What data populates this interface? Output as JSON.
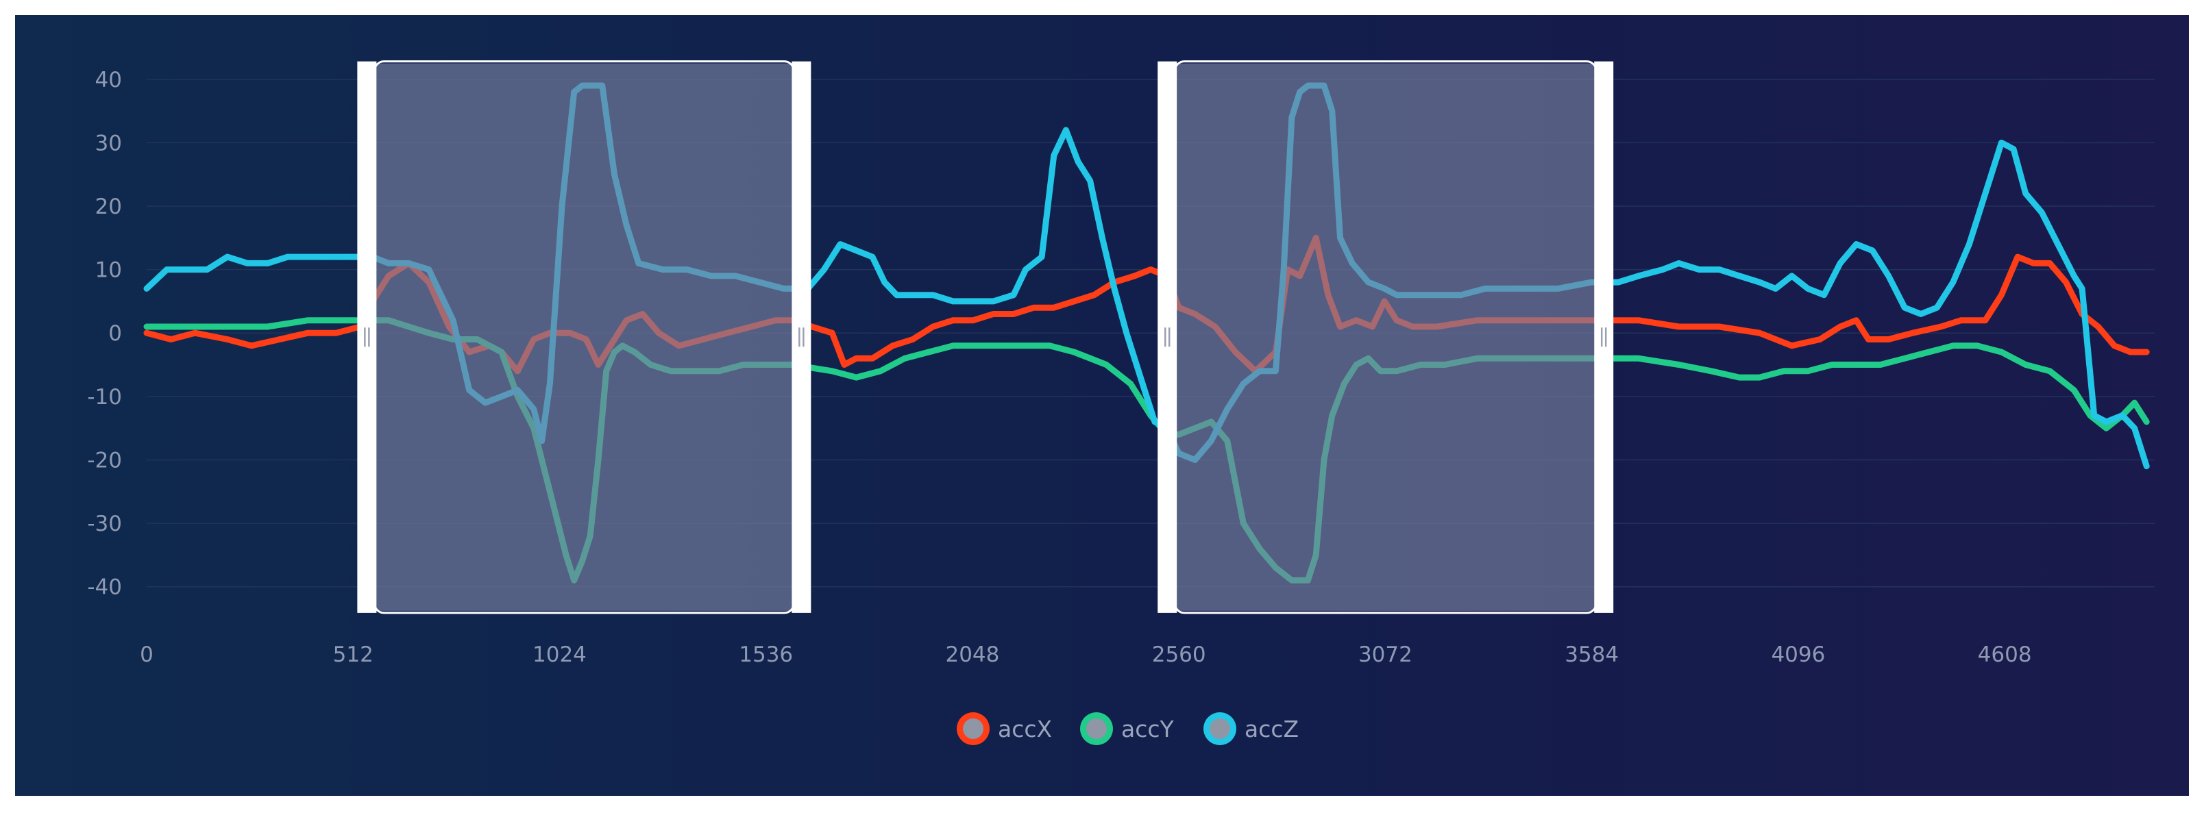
{
  "chart_data": {
    "type": "line",
    "xlim": [
      0,
      4980
    ],
    "ylim": [
      -45,
      43
    ],
    "x_ticks": [
      0,
      512,
      1024,
      1536,
      2048,
      2560,
      3072,
      3584,
      4096,
      4608
    ],
    "y_ticks": [
      40,
      30,
      20,
      10,
      0,
      -10,
      -20,
      -30,
      -40
    ],
    "x_tick_labels": [
      "0",
      "512",
      "1024",
      "1536",
      "2048",
      "2560",
      "3072",
      "3584",
      "4096",
      "4608"
    ],
    "y_tick_labels": [
      "40",
      "30",
      "20",
      "10",
      "0",
      "-10",
      "-20",
      "-30",
      "-40"
    ],
    "grid": true,
    "legend_position": "bottom-center",
    "selection_windows": [
      {
        "start": 570,
        "end": 1600
      },
      {
        "start": 2555,
        "end": 3590
      }
    ],
    "series": [
      {
        "name": "accX",
        "color": "#ff3d17",
        "points": [
          [
            0,
            0
          ],
          [
            60,
            -1
          ],
          [
            120,
            0
          ],
          [
            200,
            -1
          ],
          [
            260,
            -2
          ],
          [
            330,
            -1
          ],
          [
            400,
            0
          ],
          [
            470,
            0
          ],
          [
            530,
            1
          ],
          [
            560,
            5
          ],
          [
            600,
            9
          ],
          [
            650,
            11
          ],
          [
            700,
            8
          ],
          [
            750,
            1
          ],
          [
            800,
            -3
          ],
          [
            850,
            -2
          ],
          [
            880,
            -3
          ],
          [
            920,
            -6
          ],
          [
            960,
            -1
          ],
          [
            1000,
            0
          ],
          [
            1050,
            0
          ],
          [
            1090,
            -1
          ],
          [
            1120,
            -5
          ],
          [
            1150,
            -2
          ],
          [
            1190,
            2
          ],
          [
            1230,
            3
          ],
          [
            1270,
            0
          ],
          [
            1320,
            -2
          ],
          [
            1380,
            -1
          ],
          [
            1440,
            0
          ],
          [
            1500,
            1
          ],
          [
            1560,
            2
          ],
          [
            1600,
            2
          ],
          [
            1650,
            1
          ],
          [
            1700,
            0
          ],
          [
            1730,
            -5
          ],
          [
            1760,
            -4
          ],
          [
            1800,
            -4
          ],
          [
            1850,
            -2
          ],
          [
            1900,
            -1
          ],
          [
            1950,
            1
          ],
          [
            2000,
            2
          ],
          [
            2050,
            2
          ],
          [
            2100,
            3
          ],
          [
            2150,
            3
          ],
          [
            2200,
            4
          ],
          [
            2250,
            4
          ],
          [
            2300,
            5
          ],
          [
            2350,
            6
          ],
          [
            2400,
            8
          ],
          [
            2450,
            9
          ],
          [
            2490,
            10
          ],
          [
            2530,
            9
          ],
          [
            2560,
            4
          ],
          [
            2600,
            3
          ],
          [
            2650,
            1
          ],
          [
            2700,
            -3
          ],
          [
            2750,
            -6
          ],
          [
            2800,
            -3
          ],
          [
            2830,
            10
          ],
          [
            2860,
            9
          ],
          [
            2880,
            12
          ],
          [
            2900,
            15
          ],
          [
            2930,
            6
          ],
          [
            2960,
            1
          ],
          [
            3000,
            2
          ],
          [
            3040,
            1
          ],
          [
            3070,
            5
          ],
          [
            3100,
            2
          ],
          [
            3140,
            1
          ],
          [
            3200,
            1
          ],
          [
            3300,
            2
          ],
          [
            3400,
            2
          ],
          [
            3500,
            2
          ],
          [
            3584,
            2
          ],
          [
            3700,
            2
          ],
          [
            3800,
            1
          ],
          [
            3900,
            1
          ],
          [
            4000,
            0
          ],
          [
            4080,
            -2
          ],
          [
            4150,
            -1
          ],
          [
            4200,
            1
          ],
          [
            4240,
            2
          ],
          [
            4270,
            -1
          ],
          [
            4320,
            -1
          ],
          [
            4380,
            0
          ],
          [
            4450,
            1
          ],
          [
            4500,
            2
          ],
          [
            4560,
            2
          ],
          [
            4600,
            6
          ],
          [
            4640,
            12
          ],
          [
            4680,
            11
          ],
          [
            4720,
            11
          ],
          [
            4760,
            8
          ],
          [
            4800,
            3
          ],
          [
            4840,
            1
          ],
          [
            4880,
            -2
          ],
          [
            4920,
            -3
          ],
          [
            4960,
            -3
          ]
        ]
      },
      {
        "name": "accY",
        "color": "#21cb8a",
        "points": [
          [
            0,
            1
          ],
          [
            100,
            1
          ],
          [
            200,
            1
          ],
          [
            300,
            1
          ],
          [
            400,
            2
          ],
          [
            500,
            2
          ],
          [
            560,
            2
          ],
          [
            600,
            2
          ],
          [
            650,
            1
          ],
          [
            700,
            0
          ],
          [
            760,
            -1
          ],
          [
            820,
            -1
          ],
          [
            880,
            -3
          ],
          [
            920,
            -10
          ],
          [
            960,
            -15
          ],
          [
            1000,
            -25
          ],
          [
            1040,
            -35
          ],
          [
            1060,
            -39
          ],
          [
            1080,
            -36
          ],
          [
            1100,
            -32
          ],
          [
            1120,
            -20
          ],
          [
            1140,
            -6
          ],
          [
            1160,
            -3
          ],
          [
            1180,
            -2
          ],
          [
            1210,
            -3
          ],
          [
            1250,
            -5
          ],
          [
            1300,
            -6
          ],
          [
            1360,
            -6
          ],
          [
            1420,
            -6
          ],
          [
            1480,
            -5
          ],
          [
            1540,
            -5
          ],
          [
            1600,
            -5
          ],
          [
            1700,
            -6
          ],
          [
            1760,
            -7
          ],
          [
            1820,
            -6
          ],
          [
            1880,
            -4
          ],
          [
            1940,
            -3
          ],
          [
            2000,
            -2
          ],
          [
            2060,
            -2
          ],
          [
            2120,
            -2
          ],
          [
            2180,
            -2
          ],
          [
            2240,
            -2
          ],
          [
            2300,
            -3
          ],
          [
            2380,
            -5
          ],
          [
            2440,
            -8
          ],
          [
            2490,
            -13
          ],
          [
            2530,
            -16
          ],
          [
            2560,
            -16
          ],
          [
            2600,
            -15
          ],
          [
            2640,
            -14
          ],
          [
            2680,
            -17
          ],
          [
            2720,
            -30
          ],
          [
            2760,
            -34
          ],
          [
            2800,
            -37
          ],
          [
            2840,
            -39
          ],
          [
            2880,
            -39
          ],
          [
            2900,
            -35
          ],
          [
            2920,
            -20
          ],
          [
            2940,
            -13
          ],
          [
            2970,
            -8
          ],
          [
            3000,
            -5
          ],
          [
            3030,
            -4
          ],
          [
            3060,
            -6
          ],
          [
            3100,
            -6
          ],
          [
            3160,
            -5
          ],
          [
            3220,
            -5
          ],
          [
            3300,
            -4
          ],
          [
            3380,
            -4
          ],
          [
            3440,
            -4
          ],
          [
            3520,
            -4
          ],
          [
            3584,
            -4
          ],
          [
            3700,
            -4
          ],
          [
            3800,
            -5
          ],
          [
            3880,
            -6
          ],
          [
            3950,
            -7
          ],
          [
            4000,
            -7
          ],
          [
            4060,
            -6
          ],
          [
            4120,
            -6
          ],
          [
            4180,
            -5
          ],
          [
            4240,
            -5
          ],
          [
            4300,
            -5
          ],
          [
            4360,
            -4
          ],
          [
            4420,
            -3
          ],
          [
            4480,
            -2
          ],
          [
            4540,
            -2
          ],
          [
            4600,
            -3
          ],
          [
            4660,
            -5
          ],
          [
            4720,
            -6
          ],
          [
            4780,
            -9
          ],
          [
            4820,
            -13
          ],
          [
            4860,
            -15
          ],
          [
            4900,
            -13
          ],
          [
            4930,
            -11
          ],
          [
            4960,
            -14
          ]
        ]
      },
      {
        "name": "accZ",
        "color": "#22c6e6",
        "points": [
          [
            0,
            7
          ],
          [
            50,
            10
          ],
          [
            100,
            10
          ],
          [
            150,
            10
          ],
          [
            200,
            12
          ],
          [
            250,
            11
          ],
          [
            300,
            11
          ],
          [
            350,
            12
          ],
          [
            400,
            12
          ],
          [
            450,
            12
          ],
          [
            500,
            12
          ],
          [
            560,
            12
          ],
          [
            600,
            11
          ],
          [
            650,
            11
          ],
          [
            700,
            10
          ],
          [
            760,
            2
          ],
          [
            800,
            -9
          ],
          [
            840,
            -11
          ],
          [
            880,
            -10
          ],
          [
            920,
            -9
          ],
          [
            960,
            -12
          ],
          [
            980,
            -17
          ],
          [
            1000,
            -8
          ],
          [
            1030,
            20
          ],
          [
            1060,
            38
          ],
          [
            1080,
            39
          ],
          [
            1100,
            39
          ],
          [
            1130,
            39
          ],
          [
            1160,
            25
          ],
          [
            1190,
            17
          ],
          [
            1220,
            11
          ],
          [
            1280,
            10
          ],
          [
            1340,
            10
          ],
          [
            1400,
            9
          ],
          [
            1460,
            9
          ],
          [
            1520,
            8
          ],
          [
            1580,
            7
          ],
          [
            1640,
            7
          ],
          [
            1680,
            10
          ],
          [
            1720,
            14
          ],
          [
            1760,
            13
          ],
          [
            1800,
            12
          ],
          [
            1830,
            8
          ],
          [
            1860,
            6
          ],
          [
            1900,
            6
          ],
          [
            1950,
            6
          ],
          [
            2000,
            5
          ],
          [
            2050,
            5
          ],
          [
            2100,
            5
          ],
          [
            2150,
            6
          ],
          [
            2180,
            10
          ],
          [
            2220,
            12
          ],
          [
            2250,
            28
          ],
          [
            2280,
            32
          ],
          [
            2310,
            27
          ],
          [
            2340,
            24
          ],
          [
            2370,
            15
          ],
          [
            2400,
            7
          ],
          [
            2430,
            0
          ],
          [
            2470,
            -8
          ],
          [
            2500,
            -14
          ],
          [
            2530,
            -15
          ],
          [
            2560,
            -19
          ],
          [
            2600,
            -20
          ],
          [
            2640,
            -17
          ],
          [
            2680,
            -12
          ],
          [
            2720,
            -8
          ],
          [
            2760,
            -6
          ],
          [
            2800,
            -6
          ],
          [
            2820,
            10
          ],
          [
            2840,
            34
          ],
          [
            2860,
            38
          ],
          [
            2880,
            39
          ],
          [
            2920,
            39
          ],
          [
            2940,
            35
          ],
          [
            2960,
            15
          ],
          [
            2990,
            11
          ],
          [
            3030,
            8
          ],
          [
            3070,
            7
          ],
          [
            3100,
            6
          ],
          [
            3150,
            6
          ],
          [
            3200,
            6
          ],
          [
            3260,
            6
          ],
          [
            3320,
            7
          ],
          [
            3380,
            7
          ],
          [
            3440,
            7
          ],
          [
            3500,
            7
          ],
          [
            3584,
            8
          ],
          [
            3650,
            8
          ],
          [
            3700,
            9
          ],
          [
            3760,
            10
          ],
          [
            3800,
            11
          ],
          [
            3850,
            10
          ],
          [
            3900,
            10
          ],
          [
            3950,
            9
          ],
          [
            4000,
            8
          ],
          [
            4040,
            7
          ],
          [
            4080,
            9
          ],
          [
            4120,
            7
          ],
          [
            4160,
            6
          ],
          [
            4200,
            11
          ],
          [
            4240,
            14
          ],
          [
            4280,
            13
          ],
          [
            4320,
            9
          ],
          [
            4360,
            4
          ],
          [
            4400,
            3
          ],
          [
            4440,
            4
          ],
          [
            4480,
            8
          ],
          [
            4520,
            14
          ],
          [
            4560,
            22
          ],
          [
            4600,
            30
          ],
          [
            4630,
            29
          ],
          [
            4660,
            22
          ],
          [
            4700,
            19
          ],
          [
            4740,
            14
          ],
          [
            4780,
            9
          ],
          [
            4800,
            7
          ],
          [
            4830,
            -13
          ],
          [
            4860,
            -14
          ],
          [
            4900,
            -13
          ],
          [
            4930,
            -15
          ],
          [
            4960,
            -21
          ]
        ]
      }
    ]
  }
}
